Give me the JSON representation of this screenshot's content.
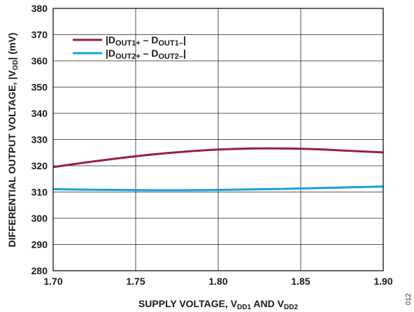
{
  "chart_data": {
    "type": "line",
    "xlabel": "SUPPLY VOLTAGE, V",
    "xlabel_sub1": "DD1",
    "xlabel_mid": " AND V",
    "xlabel_sub2": "DD2",
    "ylabel": "DIFFERENTIAL OUTPUT VOLTAGE, |V",
    "ylabel_sub": "OD",
    "ylabel_end": "| (mV)",
    "xlim": [
      1.7,
      1.9
    ],
    "ylim": [
      280,
      380
    ],
    "x_ticks": [
      "1.70",
      "1.75",
      "1.80",
      "1.85",
      "1.90"
    ],
    "y_ticks": [
      "280",
      "290",
      "300",
      "310",
      "320",
      "330",
      "340",
      "350",
      "360",
      "370",
      "380"
    ],
    "grid": true,
    "legend_position": "top-left",
    "series": [
      {
        "name": "|DOUT1+ − DOUT1−|",
        "legend": {
          "p1": "|D",
          "s1": "OUT1+",
          "p2": " – D",
          "s2": "OUT1–",
          "p3": "|"
        },
        "color": "#9b1b4b",
        "x": [
          1.7,
          1.72,
          1.74,
          1.76,
          1.78,
          1.8,
          1.82,
          1.84,
          1.86,
          1.88,
          1.9
        ],
        "y": [
          319.5,
          321.3,
          322.9,
          324.3,
          325.4,
          326.2,
          326.6,
          326.6,
          326.3,
          325.7,
          325.1
        ]
      },
      {
        "name": "|DOUT2+ − DOUT2−|",
        "legend": {
          "p1": "|D",
          "s1": "OUT2+",
          "p2": " – D",
          "s2": "OUT2–",
          "p3": "|"
        },
        "color": "#1a9fd9",
        "x": [
          1.7,
          1.72,
          1.74,
          1.76,
          1.78,
          1.8,
          1.82,
          1.84,
          1.86,
          1.88,
          1.9
        ],
        "y": [
          311.1,
          310.9,
          310.8,
          310.7,
          310.7,
          310.8,
          311.0,
          311.2,
          311.5,
          311.8,
          312.1
        ]
      }
    ]
  },
  "figure_id": "012"
}
